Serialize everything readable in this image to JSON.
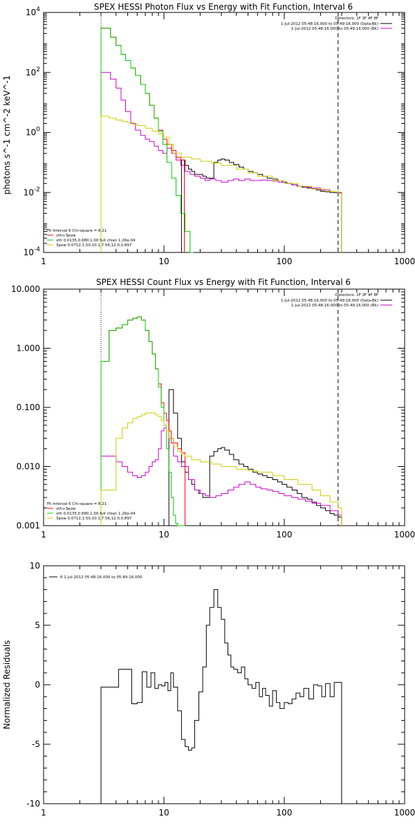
{
  "chart_data": [
    {
      "type": "line",
      "title": "SPEX HESSI Photon Flux vs Energy with Fit Function, Interval 6",
      "xlabel": "",
      "ylabel": "photons s^-1 cm^-2 keV^-1",
      "xscale": "log",
      "yscale": "log",
      "xlim": [
        1,
        1000
      ],
      "ylim": [
        0.0001,
        10000
      ],
      "xticks": [
        "1",
        "10",
        "100",
        "1000"
      ],
      "yticks": [
        "10^-4",
        "10^-2",
        "10^0",
        "10^2",
        "10^4"
      ],
      "legend_topright": {
        "header": "Detectors: 1F 3F 4F 8F",
        "entries": [
          {
            "label": "1-Jul-2012 05:48:16.000 to 05:49:16.000 (Data-Bk)",
            "color": "#000000"
          },
          {
            "label": "1-Jul-2012 05:48:16.000 to 05:49:16.000 (Bk)",
            "color": "#cc00cc"
          }
        ]
      },
      "legend_bottomleft": {
        "header": "Fit Interval 6   Chi-square = 8.21",
        "entries": [
          {
            "label": "vth+3pow",
            "color": "#ff0000"
          },
          {
            "label": "vth 0.0135,0.680,1.00  full chian 1.26e-04",
            "color": "#00cc00"
          },
          {
            "label": "3pow 0.0712,1.50,10.1,7.56,12.0,0.897",
            "color": "#cccc00"
          }
        ]
      },
      "vlines": [
        {
          "x": 3,
          "style": "dotted"
        },
        {
          "x": 280,
          "style": "dashed"
        }
      ],
      "series": [
        {
          "name": "Data-Bk",
          "color": "#000000",
          "x": [
            14,
            15,
            16,
            17,
            18,
            19.5,
            21,
            22.5,
            24,
            26,
            28,
            30,
            32,
            35,
            38,
            42,
            46,
            50,
            55,
            60,
            66,
            72,
            80,
            88,
            96,
            105,
            116,
            128,
            140,
            155,
            170,
            185,
            200,
            220,
            240,
            260,
            280
          ],
          "y": [
            0.12,
            0.08,
            0.06,
            0.05,
            0.04,
            0.04,
            0.035,
            0.03,
            0.03,
            0.1,
            0.12,
            0.13,
            0.12,
            0.1,
            0.085,
            0.07,
            0.06,
            0.05,
            0.045,
            0.04,
            0.035,
            0.03,
            0.028,
            0.025,
            0.022,
            0.02,
            0.018,
            0.016,
            0.015,
            0.014,
            0.013,
            0.012,
            0.011,
            0.0105,
            0.01,
            0.0098,
            0.0095
          ]
        },
        {
          "name": "Bk",
          "color": "#cc00cc",
          "x": [
            3,
            3.3,
            3.6,
            4,
            4.4,
            4.8,
            5.3,
            5.8,
            6.4,
            7,
            7.6,
            8.3,
            9,
            9.8,
            10.6,
            11.6,
            12.6,
            13.8,
            15,
            16.5,
            18,
            20,
            22,
            24,
            27,
            30,
            34,
            38,
            42,
            47,
            52,
            58,
            64,
            72,
            80,
            90,
            100,
            115,
            130,
            150,
            170,
            200,
            240,
            280
          ],
          "y": [
            100,
            100,
            60,
            30,
            12,
            5,
            2,
            1.2,
            0.8,
            0.6,
            0.5,
            0.35,
            0.25,
            0.2,
            0.3,
            0.2,
            0.12,
            0.08,
            0.05,
            0.04,
            0.035,
            0.03,
            0.025,
            0.028,
            0.025,
            0.022,
            0.025,
            0.028,
            0.025,
            0.028,
            0.025,
            0.025,
            0.026,
            0.025,
            0.024,
            0.022,
            0.02,
            0.018,
            0.016,
            0.015,
            0.014,
            0.012,
            0.011,
            0.01
          ]
        },
        {
          "name": "vth+3pow",
          "color": "#ff0000",
          "x": [
            3,
            3.3,
            3.6,
            4,
            4.4,
            4.8,
            5.3,
            5.8,
            6.4,
            7,
            7.6,
            8.3,
            9,
            9.8,
            10.6,
            11.6,
            12.6,
            13.8
          ],
          "y": [
            3000,
            3000,
            1500,
            800,
            400,
            250,
            140,
            80,
            40,
            20,
            8,
            3,
            1.2,
            0.6,
            0.4,
            0.25,
            0.15,
            0.12
          ]
        },
        {
          "name": "vth",
          "color": "#00cc00",
          "x": [
            3,
            3.3,
            3.6,
            4,
            4.4,
            4.8,
            5.3,
            5.8,
            6.4,
            7,
            7.6,
            8.3,
            9,
            9.8,
            10.6,
            11.6,
            12.6,
            13.8,
            15,
            16.5
          ],
          "y": [
            3000,
            3000,
            1500,
            800,
            400,
            250,
            140,
            80,
            40,
            20,
            8,
            3,
            1.1,
            0.4,
            0.1,
            0.03,
            0.008,
            0.002,
            0.0005,
            6e-05
          ]
        },
        {
          "name": "3pow",
          "color": "#cccc00",
          "x": [
            3,
            3.5,
            4,
            4.5,
            5,
            5.5,
            6,
            7,
            8,
            9,
            10,
            11,
            12,
            14,
            17,
            20,
            25,
            30,
            40,
            50,
            60,
            80,
            100,
            130,
            170,
            220,
            280
          ],
          "y": [
            3.5,
            3,
            2.6,
            2.3,
            2.1,
            1.9,
            1.7,
            1.4,
            1.1,
            0.9,
            0.7,
            0.4,
            0.2,
            0.15,
            0.13,
            0.11,
            0.095,
            0.08,
            0.06,
            0.045,
            0.035,
            0.025,
            0.02,
            0.016,
            0.013,
            0.011,
            0.0095
          ]
        }
      ]
    },
    {
      "type": "line",
      "title": "SPEX HESSI Count Flux vs Energy with Fit Function, Interval 6",
      "xlabel": "",
      "ylabel": "",
      "xscale": "log",
      "yscale": "log",
      "xlim": [
        1,
        1000
      ],
      "ylim": [
        0.001,
        10
      ],
      "xticks": [
        "1",
        "10",
        "100",
        "1000"
      ],
      "yticks": [
        "0.001",
        "0.010",
        "0.100",
        "1.000",
        "10.000"
      ],
      "legend_topright": {
        "header": "Detectors: 1F 3F 4F 8F",
        "entries": [
          {
            "label": "1-Jul-2012 05:48:16.000 to 05:49:16.000 (Data-Bk)",
            "color": "#000000"
          },
          {
            "label": "1-Jul-2012 05:48:16.000 to 05:49:16.000 (Bk)",
            "color": "#cc00cc"
          }
        ]
      },
      "legend_bottomleft": {
        "header": "Fit Interval 6   Chi-square = 8.21",
        "entries": [
          {
            "label": "vth+3pow",
            "color": "#ff0000"
          },
          {
            "label": "vth 0.0135,0.680,1.00  full chian 1.26e-04",
            "color": "#00cc00"
          },
          {
            "label": "3pow 0.0712,1.50,10.1,7.56,12.0,0.897",
            "color": "#cccc00"
          }
        ]
      },
      "vlines": [
        {
          "x": 3,
          "style": "dotted"
        },
        {
          "x": 280,
          "style": "dashed"
        }
      ],
      "series": [
        {
          "name": "Data-Bk",
          "color": "#000000",
          "x": [
            11,
            12,
            13,
            14,
            15,
            16,
            17,
            18,
            19.5,
            21,
            22.5,
            24,
            26,
            28,
            30,
            32,
            35,
            38,
            42,
            46,
            50,
            55,
            60,
            66,
            72,
            80,
            88,
            96,
            105,
            116,
            128,
            140,
            155,
            170,
            185,
            200,
            220,
            240,
            260,
            280
          ],
          "y": [
            0.2,
            0.08,
            0.03,
            0.012,
            0.008,
            0.006,
            0.005,
            0.004,
            0.0035,
            0.003,
            0.003,
            0.015,
            0.018,
            0.02,
            0.021,
            0.019,
            0.016,
            0.013,
            0.011,
            0.01,
            0.009,
            0.008,
            0.0075,
            0.007,
            0.0065,
            0.006,
            0.0055,
            0.005,
            0.0045,
            0.004,
            0.0035,
            0.003,
            0.0028,
            0.0025,
            0.0022,
            0.002,
            0.0018,
            0.0016,
            0.0015,
            0.0014
          ]
        },
        {
          "name": "Bk",
          "color": "#cc00cc",
          "x": [
            3,
            3.5,
            4,
            4.5,
            5,
            5.5,
            6,
            6.5,
            7,
            7.5,
            8,
            8.5,
            9,
            9.5,
            10,
            10.5,
            11,
            11.5,
            12,
            13,
            14,
            16,
            18,
            20,
            22,
            24,
            27,
            30,
            34,
            38,
            42,
            47,
            52,
            58,
            64,
            72,
            80,
            90,
            100,
            115,
            130,
            150,
            170,
            200,
            240,
            280
          ],
          "y": [
            0.015,
            0.015,
            0.012,
            0.01,
            0.008,
            0.007,
            0.0065,
            0.007,
            0.008,
            0.01,
            0.012,
            0.013,
            0.02,
            0.04,
            0.045,
            0.04,
            0.03,
            0.025,
            0.015,
            0.012,
            0.01,
            0.006,
            0.004,
            0.0035,
            0.0032,
            0.003,
            0.0032,
            0.0035,
            0.004,
            0.0045,
            0.005,
            0.0055,
            0.005,
            0.0045,
            0.0042,
            0.004,
            0.0038,
            0.0035,
            0.0032,
            0.003,
            0.0028,
            0.0026,
            0.0024,
            0.0022,
            0.0018,
            0.0015
          ]
        },
        {
          "name": "vth+3pow",
          "color": "#ff0000",
          "x": [
            3,
            3.5,
            4,
            4.5,
            5,
            5.5,
            6,
            6.5,
            7,
            7.5,
            8,
            8.5,
            9,
            9.5,
            10,
            10.5,
            11,
            11.5,
            12,
            13,
            14
          ],
          "y": [
            0.6,
            2.0,
            2.2,
            2.5,
            3.0,
            3.2,
            3.4,
            3.0,
            2.0,
            1.3,
            0.8,
            0.45,
            0.25,
            0.12,
            0.08,
            0.06,
            0.04,
            0.03,
            0.025,
            0.02,
            0.017
          ]
        },
        {
          "name": "vth",
          "color": "#00cc00",
          "x": [
            3,
            3.5,
            4,
            4.5,
            5,
            5.5,
            6,
            6.5,
            7,
            7.5,
            8,
            8.5,
            9,
            9.5,
            10,
            10.5,
            11,
            11.5,
            12,
            12.5,
            13,
            14
          ],
          "y": [
            0.6,
            2.0,
            2.2,
            2.5,
            3.0,
            3.2,
            3.4,
            3.0,
            2.0,
            1.3,
            0.8,
            0.45,
            0.22,
            0.1,
            0.05,
            0.02,
            0.008,
            0.003,
            0.0015,
            0.0011,
            0.001,
            0.001
          ]
        },
        {
          "name": "3pow",
          "color": "#cccc00",
          "x": [
            3,
            3.5,
            4,
            4.5,
            5,
            5.5,
            6,
            6.5,
            7,
            7.5,
            8,
            8.5,
            9,
            9.5,
            10,
            10.5,
            11,
            12,
            13,
            14,
            15,
            17,
            20,
            25,
            30,
            40,
            50,
            60,
            80,
            100,
            130,
            170,
            200,
            240,
            280
          ],
          "y": [
            0.004,
            0.004,
            0.03,
            0.045,
            0.055,
            0.065,
            0.07,
            0.075,
            0.08,
            0.08,
            0.08,
            0.075,
            0.07,
            0.06,
            0.05,
            0.04,
            0.03,
            0.022,
            0.018,
            0.016,
            0.015,
            0.013,
            0.012,
            0.011,
            0.01,
            0.009,
            0.0085,
            0.008,
            0.007,
            0.006,
            0.005,
            0.004,
            0.0032,
            0.0025,
            0.002
          ]
        }
      ]
    },
    {
      "type": "line",
      "title": "",
      "xlabel": "",
      "ylabel": "Normalized Residuals",
      "xscale": "log",
      "yscale": "linear",
      "xlim": [
        1,
        1000
      ],
      "ylim": [
        -10,
        10
      ],
      "xticks": [
        "1",
        "10",
        "100",
        "1000"
      ],
      "yticks": [
        "-10",
        "-5",
        "0",
        "5",
        "10"
      ],
      "legend_topleft": {
        "entries": [
          {
            "label": "6  1-Jul-2012 05:48:16.000 to 05:49:16.000",
            "color": "#000000"
          }
        ]
      },
      "series": [
        {
          "name": "residuals",
          "color": "#000000",
          "x": [
            3,
            3.6,
            4.2,
            4.8,
            5.4,
            6,
            6.6,
            7.2,
            7.8,
            8.4,
            9,
            9.6,
            10.2,
            10.8,
            11.4,
            12,
            13,
            14,
            15,
            16,
            17,
            18,
            19.5,
            21,
            22.5,
            24,
            26,
            28,
            30,
            32,
            34,
            36,
            38,
            41,
            44,
            47,
            50,
            54,
            58,
            62,
            66,
            70,
            75,
            80,
            86,
            92,
            100,
            108,
            116,
            125,
            135,
            145,
            160,
            175,
            190,
            205,
            220,
            240,
            260,
            280
          ],
          "y": [
            -0.2,
            -0.2,
            1.3,
            1.3,
            -1.6,
            -1.5,
            1.1,
            -0.2,
            1.0,
            -0.3,
            0.0,
            -0.1,
            0.2,
            -0.5,
            1.0,
            -0.2,
            -2.2,
            -4.6,
            -5.2,
            -5.5,
            -5.3,
            -3.0,
            -0.6,
            1.5,
            5.0,
            6.5,
            8.0,
            6.5,
            5.5,
            3.5,
            2.5,
            1.5,
            1.3,
            1.0,
            1.5,
            0.5,
            0.0,
            -0.3,
            0.2,
            -1.0,
            -0.3,
            -0.9,
            -1.8,
            -0.5,
            -1.5,
            -2.0,
            -1.5,
            -1.6,
            -1.2,
            -0.7,
            -1.0,
            -0.3,
            -1.2,
            0.0,
            -0.1,
            -1.0,
            0.1,
            -1.0,
            0.2,
            0.2
          ]
        }
      ]
    }
  ]
}
